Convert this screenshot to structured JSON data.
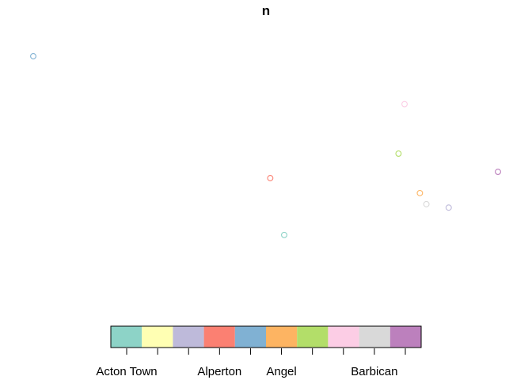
{
  "chart_data": {
    "type": "scatter",
    "title": "n",
    "xlabel": "",
    "ylabel": "",
    "axes_visible": false,
    "points": [
      {
        "x": 0.0,
        "y": 1.0,
        "category_index": 4
      },
      {
        "x": 0.799,
        "y": 0.779,
        "category_index": 7
      },
      {
        "x": 0.786,
        "y": 0.551,
        "category_index": 6
      },
      {
        "x": 0.51,
        "y": 0.438,
        "category_index": 3
      },
      {
        "x": 1.0,
        "y": 0.467,
        "category_index": 9
      },
      {
        "x": 0.832,
        "y": 0.369,
        "category_index": 5
      },
      {
        "x": 0.846,
        "y": 0.318,
        "category_index": 8
      },
      {
        "x": 0.894,
        "y": 0.302,
        "category_index": 2
      },
      {
        "x": 0.54,
        "y": 0.176,
        "category_index": 0
      }
    ],
    "legend": {
      "placement": "bottom",
      "type": "color-key",
      "colors": [
        "#8DD3C7",
        "#FFFFB3",
        "#BEBADA",
        "#FB8072",
        "#80B1D3",
        "#FDB462",
        "#B3DE69",
        "#FCCDE5",
        "#D9D9D9",
        "#BC80BD"
      ],
      "tick_count": 10,
      "labels": [
        {
          "text": "Acton Town",
          "tick_index": 0
        },
        {
          "text": "Alperton",
          "tick_index": 3
        },
        {
          "text": "Angel",
          "tick_index": 5
        },
        {
          "text": "Barbican",
          "tick_index": 8
        }
      ]
    }
  }
}
